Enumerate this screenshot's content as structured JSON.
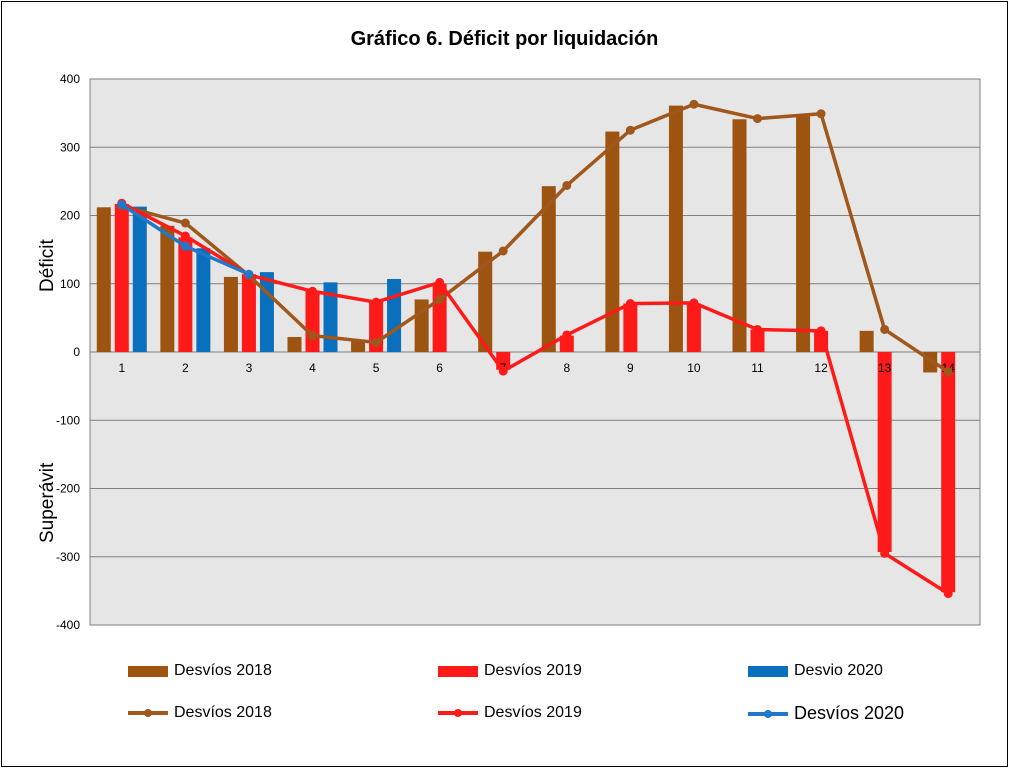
{
  "chart_data": {
    "type": "bar+line",
    "title": "Gráfico 6. Déficit por liquidación",
    "ylabel_top": "Déficit",
    "ylabel_bottom": "Superávit",
    "ylim": [
      -400,
      400
    ],
    "yticks": [
      400,
      300,
      200,
      100,
      0,
      -100,
      -200,
      -300,
      -400
    ],
    "categories": [
      "1",
      "2",
      "3",
      "4",
      "5",
      "6",
      "7",
      "8",
      "9",
      "10",
      "11",
      "12",
      "13",
      "14"
    ],
    "bar_series": [
      {
        "name": "Desvíos 2018",
        "color": "#9c5410",
        "values": [
          212,
          185,
          110,
          22,
          16,
          77,
          147,
          243,
          323,
          361,
          341,
          348,
          31,
          -30
        ]
      },
      {
        "name": "Desvíos 2019",
        "color": "#ff1a1a",
        "values": [
          217,
          168,
          114,
          90,
          74,
          100,
          -26,
          24,
          71,
          71,
          33,
          31,
          -293,
          -352
        ]
      },
      {
        "name": "Desvio 2020",
        "color": "#0a6fbd",
        "values": [
          213,
          152,
          117,
          102,
          107,
          null,
          null,
          null,
          null,
          null,
          null,
          null,
          null,
          null
        ]
      }
    ],
    "line_series": [
      {
        "name": "Desvíos 2018",
        "color": "#a0571c",
        "values": [
          214,
          189,
          112,
          24,
          14,
          77,
          148,
          244,
          325,
          363,
          342,
          349,
          33,
          -29
        ]
      },
      {
        "name": "Desvíos 2019",
        "color": "#ff1a1a",
        "values": [
          218,
          170,
          113,
          89,
          73,
          102,
          -28,
          25,
          71,
          72,
          33,
          31,
          -295,
          -354
        ]
      },
      {
        "name": "Desvíos 2020",
        "color": "#1f78c8",
        "values": [
          216,
          155,
          114,
          null,
          null,
          null,
          null,
          null,
          null,
          null,
          null,
          null,
          null,
          null
        ]
      }
    ],
    "grid": true,
    "legend_position": "bottom"
  },
  "legend": {
    "bar_2018": "Desvíos 2018",
    "bar_2019": "Desvíos 2019",
    "bar_2020": "Desvio 2020",
    "line_2018": "Desvíos 2018",
    "line_2019": "Desvíos 2019",
    "line_2020": "Desvíos 2020"
  }
}
